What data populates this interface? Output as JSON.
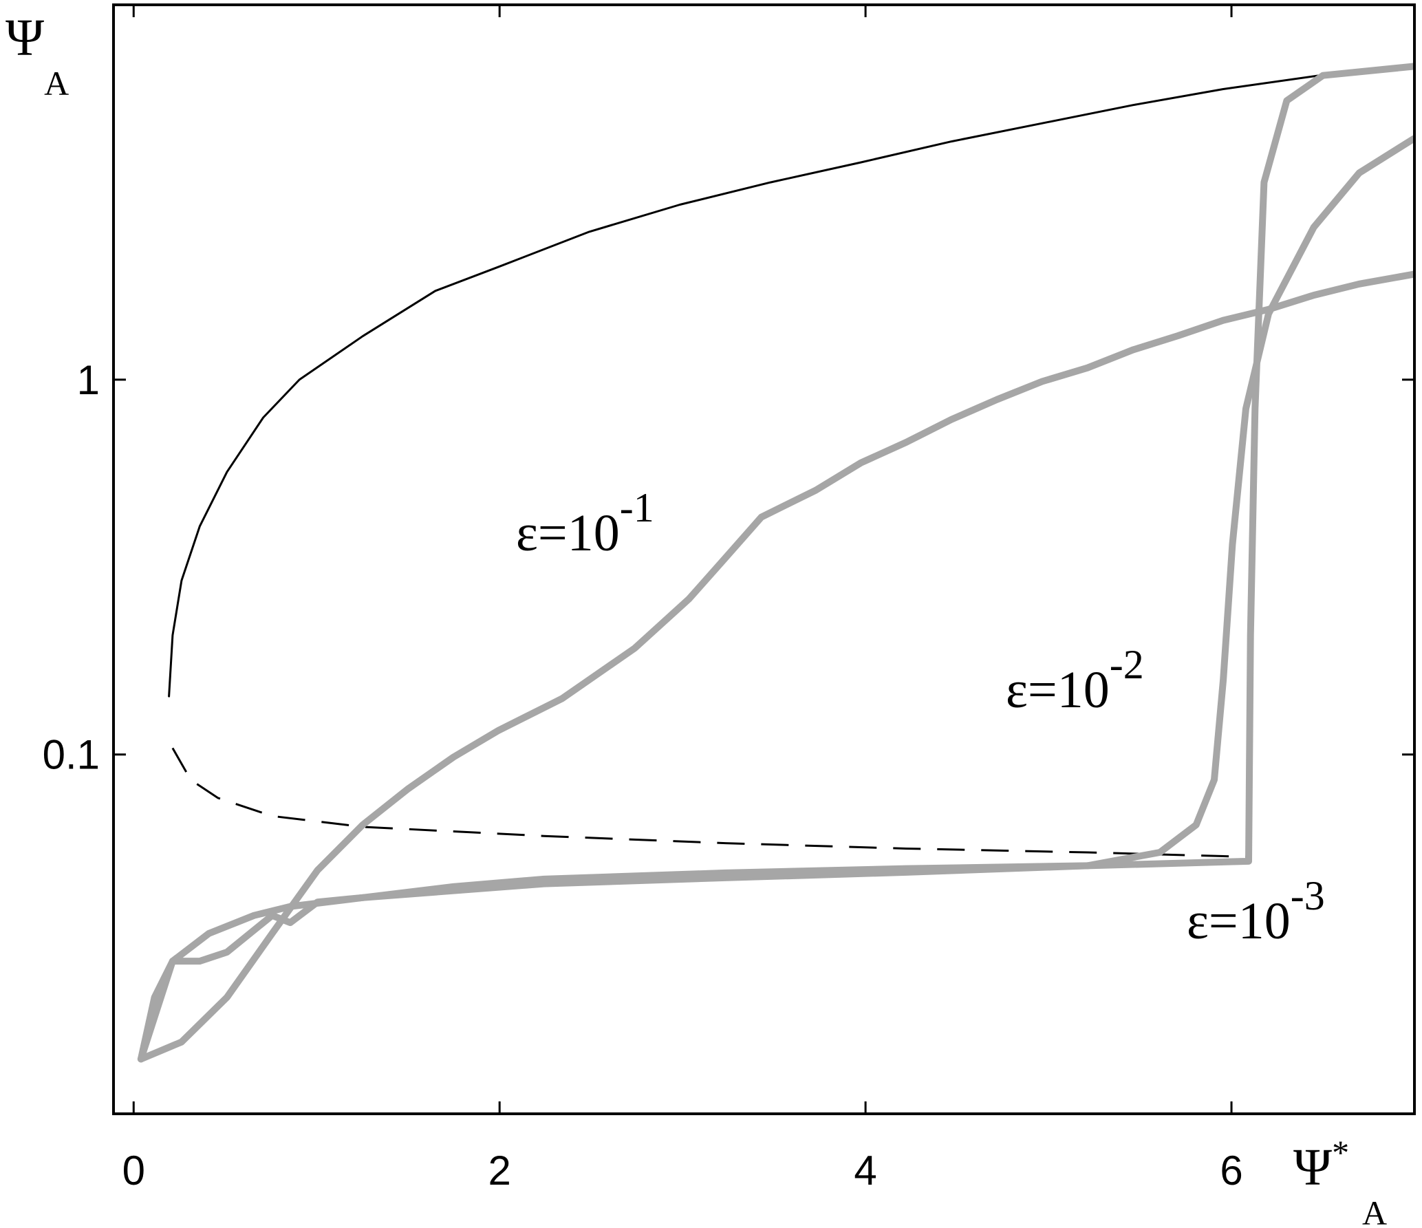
{
  "chart_data": {
    "type": "line",
    "log_y": true,
    "grid": false,
    "x_label": {
      "main": "Ψ",
      "superscript": "*",
      "subscript": "A"
    },
    "y_label": {
      "main": "Ψ",
      "subscript": "A"
    },
    "xlim": [
      -0.11,
      7.0
    ],
    "ylim": [
      0.011,
      10
    ],
    "xticks": [
      0,
      2,
      4,
      6
    ],
    "yticks": [
      0.1,
      1
    ],
    "annotations": [
      {
        "text": "ε=10",
        "superscript": "-1"
      },
      {
        "text": "ε=10",
        "superscript": "-2"
      },
      {
        "text": "ε=10",
        "superscript": "-3"
      }
    ],
    "series": [
      {
        "color": "#000000",
        "dash": false,
        "width": 3,
        "x": [
          0.193,
          0.213,
          0.262,
          0.361,
          0.51,
          0.708,
          0.906,
          1.252,
          1.649,
          1.995,
          2.49,
          2.985,
          3.48,
          3.975,
          4.47,
          4.965,
          5.46,
          5.955,
          6.55
        ],
        "values": [
          0.143,
          0.208,
          0.291,
          0.406,
          0.567,
          0.792,
          1.0,
          1.306,
          1.725,
          2.0,
          2.48,
          2.93,
          3.36,
          3.8,
          4.32,
          4.83,
          5.4,
          5.96,
          6.55
        ]
      },
      {
        "color": "#000000",
        "dash": true,
        "width": 3,
        "x": [
          0.213,
          0.312,
          0.46,
          0.757,
          1.252,
          2.243,
          3.233,
          4.223,
          5.213,
          6.104
        ],
        "values": [
          0.104,
          0.0856,
          0.0766,
          0.0685,
          0.0641,
          0.0606,
          0.058,
          0.0561,
          0.0548,
          0.0533
        ]
      },
      {
        "color": "#a6a6a6",
        "dash": false,
        "width": 10,
        "x": [
          0.04,
          0.262,
          0.51,
          0.757,
          1.005,
          1.252,
          1.5,
          1.748,
          1.995,
          2.342,
          2.738,
          3.035,
          3.233,
          3.431,
          3.728,
          3.975,
          4.223,
          4.47,
          4.718,
          4.965,
          5.213,
          5.46,
          5.708,
          5.955,
          6.203,
          6.45,
          6.698,
          6.995
        ],
        "values": [
          0.0154,
          0.0171,
          0.0225,
          0.0333,
          0.0491,
          0.0649,
          0.081,
          0.0984,
          0.116,
          0.141,
          0.192,
          0.26,
          0.334,
          0.43,
          0.507,
          0.6,
          0.681,
          0.783,
          0.885,
          0.989,
          1.075,
          1.2,
          1.31,
          1.44,
          1.54,
          1.68,
          1.8,
          1.91
        ]
      },
      {
        "color": "#a6a6a6",
        "dash": false,
        "width": 10,
        "x": [
          0.04,
          0.114,
          0.213,
          0.411,
          0.658,
          0.856,
          1.252,
          2.243,
          3.233,
          4.223,
          5.213,
          5.609,
          5.807,
          5.906,
          5.955,
          6.005,
          6.079,
          6.203,
          6.45,
          6.698,
          6.995
        ],
        "values": [
          0.0154,
          0.0225,
          0.0281,
          0.0333,
          0.0372,
          0.0393,
          0.0415,
          0.0452,
          0.0469,
          0.0485,
          0.0505,
          0.0548,
          0.0649,
          0.0856,
          0.158,
          0.363,
          0.837,
          1.5,
          2.55,
          3.56,
          4.39
        ]
      },
      {
        "color": "#a6a6a6",
        "dash": false,
        "width": 10,
        "x": [
          0.04,
          0.213,
          0.361,
          0.51,
          0.757,
          0.856,
          1.005,
          1.252,
          1.748,
          2.243,
          3.233,
          4.223,
          5.213,
          6.094,
          6.104,
          6.129,
          6.178,
          6.302,
          6.5,
          6.995
        ],
        "values": [
          0.0154,
          0.0281,
          0.0281,
          0.0297,
          0.0372,
          0.0356,
          0.0404,
          0.0415,
          0.0444,
          0.0465,
          0.0483,
          0.0496,
          0.0505,
          0.0519,
          0.208,
          0.837,
          3.36,
          5.55,
          6.48,
          6.85
        ]
      }
    ]
  }
}
